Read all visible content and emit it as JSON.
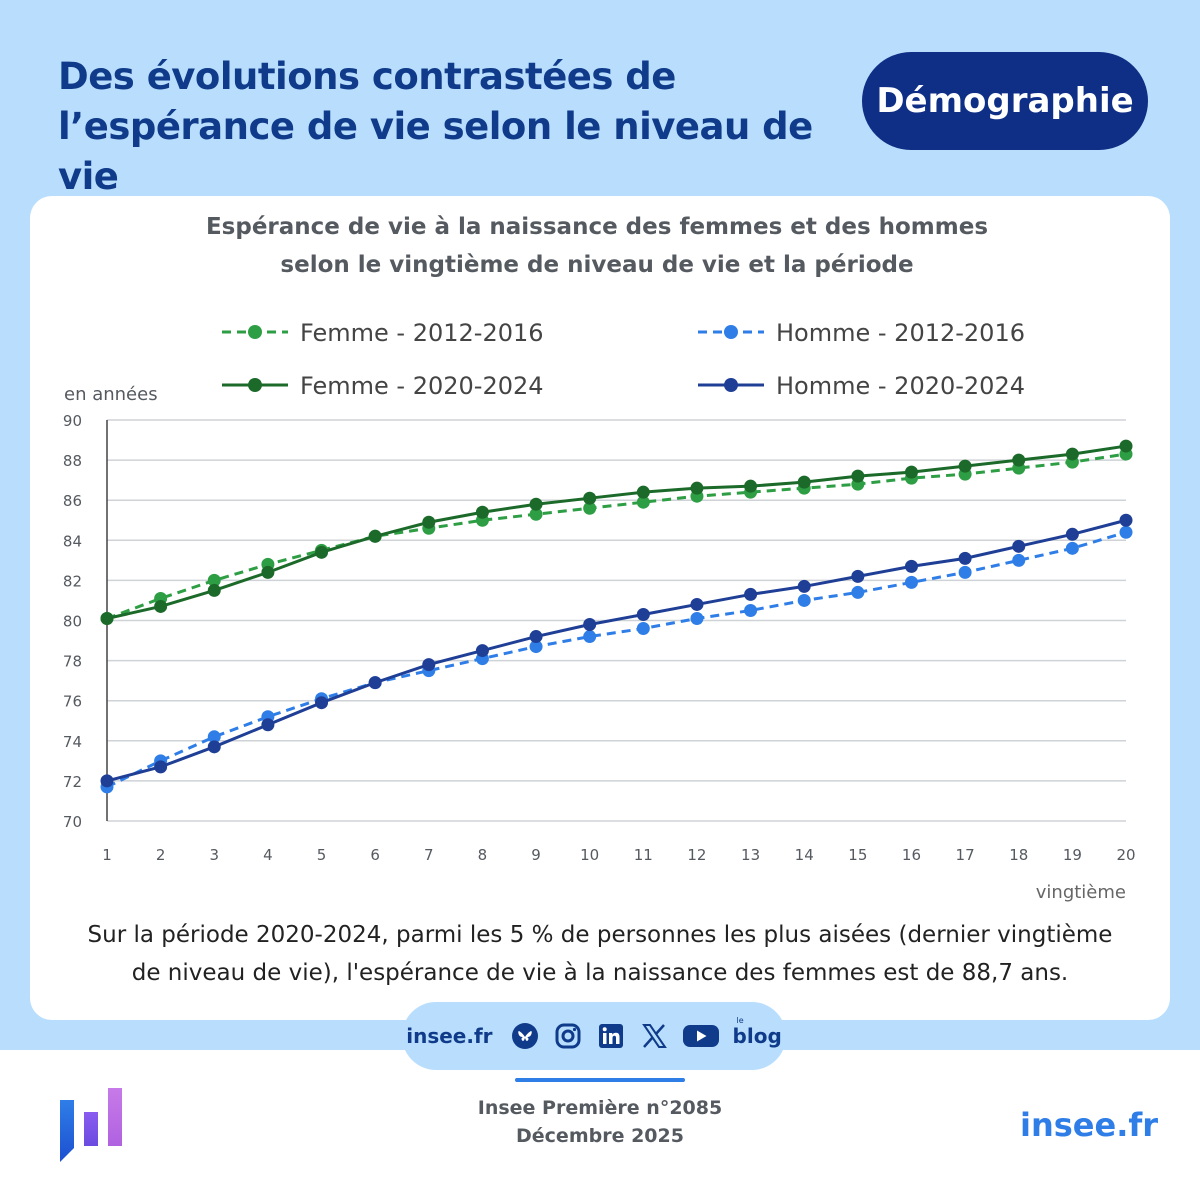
{
  "header": {
    "title_line1": "Des évolutions contrastées de",
    "title_line2": "l’espérance de vie selon le niveau de vie",
    "category": "Démographie"
  },
  "colors": {
    "band": "#b9defd",
    "navy": "#0f3b8a",
    "femme": "#2e9e44",
    "femme_dark": "#1c6a2a",
    "homme": "#2f7ee8",
    "homme_dark": "#1f3f96",
    "accent": "#2f7ee8"
  },
  "chart_data": {
    "type": "line",
    "title_line1": "Espérance de vie à la naissance des femmes et des hommes",
    "title_line2": "selon le vingtième de niveau de vie et la période",
    "ylabel": "en années",
    "xlabel": "vingtième",
    "ylim": [
      70,
      90
    ],
    "yticks": [
      70,
      72,
      74,
      76,
      78,
      80,
      82,
      84,
      86,
      88,
      90
    ],
    "x": [
      1,
      2,
      3,
      4,
      5,
      6,
      7,
      8,
      9,
      10,
      11,
      12,
      13,
      14,
      15,
      16,
      17,
      18,
      19,
      20
    ],
    "series": [
      {
        "name": "Femme - 2012-2016",
        "style": "dashed",
        "color": "#2e9e44",
        "values": [
          80.1,
          81.1,
          82.0,
          82.8,
          83.5,
          84.2,
          84.6,
          85.0,
          85.3,
          85.6,
          85.9,
          86.2,
          86.4,
          86.6,
          86.8,
          87.1,
          87.3,
          87.6,
          87.9,
          88.3
        ]
      },
      {
        "name": "Homme - 2012-2016",
        "style": "dashed",
        "color": "#2f7ee8",
        "values": [
          71.7,
          73.0,
          74.2,
          75.2,
          76.1,
          76.9,
          77.5,
          78.1,
          78.7,
          79.2,
          79.6,
          80.1,
          80.5,
          81.0,
          81.4,
          81.9,
          82.4,
          83.0,
          83.6,
          84.4
        ]
      },
      {
        "name": "Femme - 2020-2024",
        "style": "solid",
        "color": "#1c6a2a",
        "values": [
          80.1,
          80.7,
          81.5,
          82.4,
          83.4,
          84.2,
          84.9,
          85.4,
          85.8,
          86.1,
          86.4,
          86.6,
          86.7,
          86.9,
          87.2,
          87.4,
          87.7,
          88.0,
          88.3,
          88.7
        ]
      },
      {
        "name": "Homme - 2020-2024",
        "style": "solid",
        "color": "#1f3f96",
        "values": [
          72.0,
          72.7,
          73.7,
          74.8,
          75.9,
          76.9,
          77.8,
          78.5,
          79.2,
          79.8,
          80.3,
          80.8,
          81.3,
          81.7,
          82.2,
          82.7,
          83.1,
          83.7,
          84.3,
          85.0
        ]
      }
    ]
  },
  "caption": {
    "line1": "Sur la période 2020-2024, parmi les 5 % de personnes les plus aisées (dernier vingtième",
    "line2": "de niveau de vie), l'espérance de vie à la naissance des femmes est de 88,7 ans."
  },
  "social": {
    "site": "insee.fr",
    "icons": [
      "bluesky-icon",
      "instagram-icon",
      "linkedin-icon",
      "x-icon",
      "youtube-icon"
    ],
    "blog_label": "blog",
    "blog_small": "le"
  },
  "footer": {
    "publication": "Insee Première n°2085",
    "date": "Décembre 2025",
    "site": "insee.fr"
  }
}
